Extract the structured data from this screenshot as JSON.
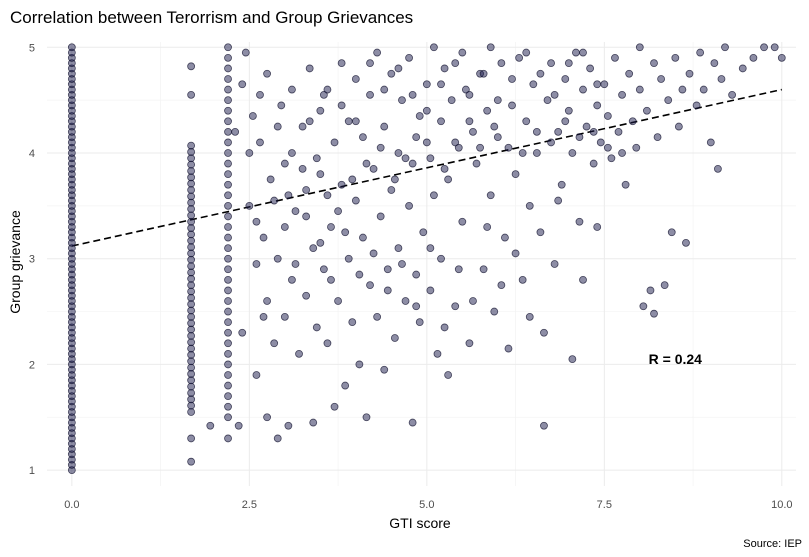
{
  "chart_data": {
    "type": "scatter",
    "title": "Correlation between Terorrism and Group Grievances",
    "xlabel": "GTI score",
    "ylabel": "Group grievance",
    "caption": "Source: IEP",
    "annotation": "R = 0.24",
    "annotation_at": {
      "x": 8.5,
      "y": 2.05
    },
    "xlim": [
      -0.35,
      10.2
    ],
    "ylim": [
      0.85,
      5.05
    ],
    "xticks": [
      0,
      2.5,
      5,
      7.5,
      10
    ],
    "xtick_labels": [
      "0.0",
      "2.5",
      "5.0",
      "7.5",
      "10.0"
    ],
    "yticks": [
      1,
      2,
      3,
      4,
      5
    ],
    "ytick_labels": [
      "1",
      "2",
      "3",
      "4",
      "5"
    ],
    "grid": true,
    "trend_line": {
      "x": [
        0,
        10
      ],
      "y": [
        3.12,
        4.6
      ],
      "style": "dashed"
    },
    "columns": [
      {
        "x": 0,
        "ymin": 1.0,
        "ymax": 5.0,
        "step": 0.05
      },
      {
        "x": 1.68,
        "ymin": 1.55,
        "ymax": 4.1,
        "step": 0.06
      },
      {
        "x": 2.2,
        "ymin": 1.5,
        "ymax": 4.9,
        "step": 0.1
      }
    ],
    "points": [
      [
        1.68,
        1.08
      ],
      [
        1.68,
        1.3
      ],
      [
        1.68,
        4.55
      ],
      [
        1.68,
        4.82
      ],
      [
        1.95,
        1.42
      ],
      [
        2.2,
        1.3
      ],
      [
        2.2,
        5.0
      ],
      [
        2.3,
        4.2
      ],
      [
        2.35,
        1.42
      ],
      [
        2.4,
        2.3
      ],
      [
        2.4,
        4.65
      ],
      [
        2.45,
        4.95
      ],
      [
        2.5,
        3.5
      ],
      [
        2.55,
        4.35
      ],
      [
        2.6,
        1.9
      ],
      [
        2.6,
        2.95
      ],
      [
        2.65,
        4.1
      ],
      [
        2.7,
        3.2
      ],
      [
        2.75,
        1.5
      ],
      [
        2.75,
        2.6
      ],
      [
        2.75,
        4.75
      ],
      [
        2.8,
        3.75
      ],
      [
        2.85,
        2.2
      ],
      [
        2.9,
        1.3
      ],
      [
        2.9,
        3.0
      ],
      [
        2.95,
        4.45
      ],
      [
        3.0,
        2.45
      ],
      [
        3.0,
        3.9
      ],
      [
        3.05,
        1.42
      ],
      [
        3.1,
        2.8
      ],
      [
        3.1,
        4.6
      ],
      [
        3.15,
        3.45
      ],
      [
        3.2,
        2.1
      ],
      [
        3.25,
        4.25
      ],
      [
        3.3,
        2.65
      ],
      [
        3.3,
        3.65
      ],
      [
        3.35,
        4.8
      ],
      [
        3.4,
        1.45
      ],
      [
        3.4,
        3.1
      ],
      [
        3.45,
        2.35
      ],
      [
        3.5,
        4.4
      ],
      [
        3.5,
        3.8
      ],
      [
        3.55,
        2.9
      ],
      [
        3.6,
        2.2
      ],
      [
        3.6,
        4.6
      ],
      [
        3.65,
        3.3
      ],
      [
        3.7,
        1.6
      ],
      [
        3.7,
        4.1
      ],
      [
        3.75,
        2.6
      ],
      [
        3.8,
        3.7
      ],
      [
        3.8,
        4.85
      ],
      [
        3.85,
        1.8
      ],
      [
        3.9,
        3.0
      ],
      [
        3.9,
        4.3
      ],
      [
        3.95,
        2.4
      ],
      [
        4.0,
        3.55
      ],
      [
        4.0,
        4.7
      ],
      [
        4.05,
        2.0
      ],
      [
        4.1,
        3.2
      ],
      [
        4.1,
        4.15
      ],
      [
        4.15,
        1.5
      ],
      [
        4.2,
        2.75
      ],
      [
        4.2,
        4.55
      ],
      [
        4.25,
        3.85
      ],
      [
        4.3,
        2.45
      ],
      [
        4.3,
        4.95
      ],
      [
        4.35,
        3.4
      ],
      [
        4.4,
        1.95
      ],
      [
        4.4,
        4.25
      ],
      [
        4.45,
        2.9
      ],
      [
        4.5,
        3.65
      ],
      [
        4.5,
        4.75
      ],
      [
        4.55,
        2.25
      ],
      [
        4.6,
        4.0
      ],
      [
        4.6,
        3.1
      ],
      [
        4.65,
        4.5
      ],
      [
        4.7,
        2.6
      ],
      [
        4.75,
        3.5
      ],
      [
        4.75,
        4.9
      ],
      [
        4.8,
        1.45
      ],
      [
        4.8,
        3.9
      ],
      [
        4.85,
        2.85
      ],
      [
        4.9,
        4.35
      ],
      [
        4.9,
        2.4
      ],
      [
        4.95,
        3.25
      ],
      [
        5.0,
        4.65
      ],
      [
        5.0,
        4.1
      ],
      [
        5.05,
        2.7
      ],
      [
        5.1,
        3.6
      ],
      [
        5.1,
        5.0
      ],
      [
        5.15,
        2.1
      ],
      [
        5.2,
        4.3
      ],
      [
        5.2,
        3.0
      ],
      [
        5.25,
        4.8
      ],
      [
        5.3,
        1.9
      ],
      [
        5.3,
        3.75
      ],
      [
        5.35,
        4.5
      ],
      [
        5.4,
        2.55
      ],
      [
        5.45,
        4.05
      ],
      [
        5.5,
        4.95
      ],
      [
        5.5,
        3.35
      ],
      [
        5.55,
        4.6
      ],
      [
        5.6,
        2.2
      ],
      [
        5.65,
        4.2
      ],
      [
        5.7,
        3.9
      ],
      [
        5.75,
        4.75
      ],
      [
        5.8,
        2.9
      ],
      [
        5.85,
        4.4
      ],
      [
        5.9,
        3.6
      ],
      [
        5.9,
        5.0
      ],
      [
        5.95,
        2.5
      ],
      [
        6.0,
        4.15
      ],
      [
        6.05,
        4.85
      ],
      [
        6.1,
        3.2
      ],
      [
        6.15,
        2.15
      ],
      [
        6.2,
        4.45
      ],
      [
        6.25,
        3.8
      ],
      [
        6.3,
        4.9
      ],
      [
        6.35,
        2.8
      ],
      [
        6.4,
        4.3
      ],
      [
        6.45,
        3.5
      ],
      [
        6.5,
        4.65
      ],
      [
        6.55,
        4.0
      ],
      [
        6.6,
        3.25
      ],
      [
        6.65,
        1.42
      ],
      [
        6.65,
        2.3
      ],
      [
        6.7,
        4.5
      ],
      [
        6.75,
        4.85
      ],
      [
        6.8,
        2.95
      ],
      [
        6.85,
        4.2
      ],
      [
        6.9,
        3.7
      ],
      [
        6.95,
        4.7
      ],
      [
        7.0,
        4.4
      ],
      [
        7.05,
        2.05
      ],
      [
        7.05,
        4.0
      ],
      [
        7.1,
        4.95
      ],
      [
        7.15,
        3.35
      ],
      [
        7.2,
        4.6
      ],
      [
        7.25,
        4.25
      ],
      [
        7.3,
        4.8
      ],
      [
        7.35,
        3.9
      ],
      [
        7.4,
        4.45
      ],
      [
        7.45,
        4.1
      ],
      [
        7.5,
        4.65
      ],
      [
        7.55,
        4.35
      ],
      [
        7.6,
        3.95
      ],
      [
        7.65,
        4.9
      ],
      [
        7.7,
        4.2
      ],
      [
        7.75,
        4.55
      ],
      [
        7.8,
        3.7
      ],
      [
        7.85,
        4.75
      ],
      [
        7.9,
        4.3
      ],
      [
        7.95,
        4.05
      ],
      [
        8.0,
        4.6
      ],
      [
        8.0,
        5.0
      ],
      [
        8.05,
        2.55
      ],
      [
        8.1,
        4.4
      ],
      [
        8.15,
        2.7
      ],
      [
        8.2,
        4.85
      ],
      [
        8.2,
        2.48
      ],
      [
        8.25,
        4.15
      ],
      [
        8.3,
        4.7
      ],
      [
        8.35,
        2.75
      ],
      [
        8.4,
        4.5
      ],
      [
        8.45,
        3.25
      ],
      [
        8.5,
        4.9
      ],
      [
        8.55,
        4.25
      ],
      [
        8.6,
        4.6
      ],
      [
        8.65,
        3.15
      ],
      [
        8.7,
        4.75
      ],
      [
        8.8,
        4.45
      ],
      [
        8.85,
        4.95
      ],
      [
        8.9,
        4.6
      ],
      [
        9.0,
        4.1
      ],
      [
        9.05,
        4.85
      ],
      [
        9.1,
        3.85
      ],
      [
        9.15,
        4.7
      ],
      [
        9.2,
        5.0
      ],
      [
        9.3,
        4.55
      ],
      [
        9.45,
        4.8
      ],
      [
        9.6,
        4.9
      ],
      [
        9.75,
        5.0
      ],
      [
        9.9,
        5.0
      ],
      [
        10.0,
        4.9
      ],
      [
        3.05,
        3.6
      ],
      [
        3.25,
        3.85
      ],
      [
        3.45,
        3.95
      ],
      [
        3.6,
        3.6
      ],
      [
        3.75,
        3.45
      ],
      [
        3.95,
        3.75
      ],
      [
        4.15,
        3.9
      ],
      [
        4.35,
        4.05
      ],
      [
        4.55,
        3.75
      ],
      [
        4.7,
        3.95
      ],
      [
        4.85,
        4.15
      ],
      [
        5.05,
        3.95
      ],
      [
        5.25,
        3.85
      ],
      [
        5.4,
        4.1
      ],
      [
        5.6,
        4.3
      ],
      [
        5.75,
        4.05
      ],
      [
        5.95,
        4.25
      ],
      [
        6.15,
        4.05
      ],
      [
        6.35,
        4.0
      ],
      [
        6.55,
        4.2
      ],
      [
        6.75,
        4.1
      ],
      [
        6.95,
        4.3
      ],
      [
        7.15,
        4.15
      ],
      [
        7.35,
        4.2
      ],
      [
        7.55,
        4.05
      ],
      [
        7.75,
        4.0
      ],
      [
        2.6,
        3.35
      ],
      [
        2.7,
        2.45
      ],
      [
        2.85,
        3.55
      ],
      [
        3.0,
        3.3
      ],
      [
        3.15,
        2.95
      ],
      [
        3.3,
        3.4
      ],
      [
        3.5,
        3.15
      ],
      [
        3.65,
        2.8
      ],
      [
        3.85,
        3.25
      ],
      [
        4.05,
        2.85
      ],
      [
        4.25,
        3.05
      ],
      [
        4.45,
        2.7
      ],
      [
        4.65,
        2.95
      ],
      [
        4.85,
        2.55
      ],
      [
        5.05,
        3.1
      ],
      [
        5.25,
        2.35
      ],
      [
        5.45,
        2.9
      ],
      [
        5.65,
        2.6
      ],
      [
        5.85,
        3.3
      ],
      [
        6.05,
        2.75
      ],
      [
        6.25,
        3.05
      ],
      [
        6.45,
        2.45
      ],
      [
        6.85,
        3.55
      ],
      [
        7.2,
        2.8
      ],
      [
        7.4,
        3.3
      ],
      [
        2.5,
        4.0
      ],
      [
        2.65,
        4.55
      ],
      [
        2.9,
        4.25
      ],
      [
        3.1,
        4.0
      ],
      [
        3.35,
        4.3
      ],
      [
        3.55,
        4.55
      ],
      [
        3.8,
        4.45
      ],
      [
        4.0,
        4.3
      ],
      [
        4.2,
        4.85
      ],
      [
        4.4,
        4.6
      ],
      [
        4.6,
        4.8
      ],
      [
        4.8,
        4.55
      ],
      [
        5.0,
        4.4
      ],
      [
        5.2,
        4.65
      ],
      [
        5.4,
        4.85
      ],
      [
        5.6,
        4.55
      ],
      [
        5.8,
        4.75
      ],
      [
        6.0,
        4.5
      ],
      [
        6.2,
        4.7
      ],
      [
        6.4,
        4.95
      ],
      [
        6.6,
        4.75
      ],
      [
        6.8,
        4.55
      ],
      [
        7.0,
        4.85
      ],
      [
        7.2,
        4.95
      ],
      [
        7.4,
        4.65
      ]
    ]
  }
}
